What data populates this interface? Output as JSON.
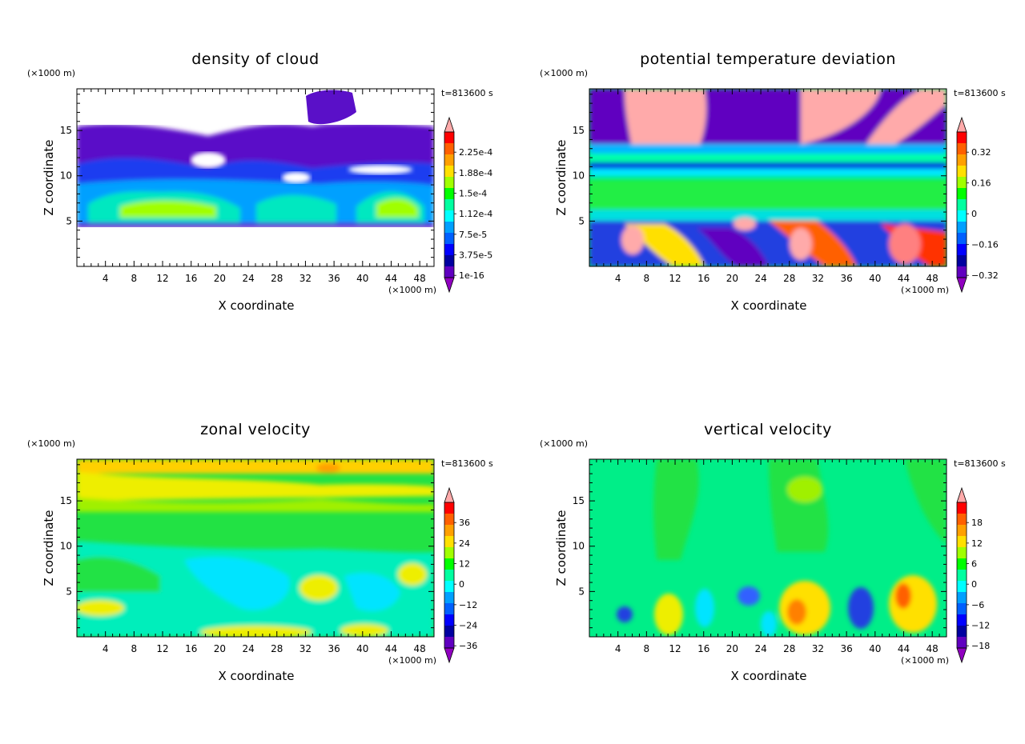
{
  "chart_data": [
    {
      "type": "heatmap",
      "title": "density of cloud",
      "xlabel": "X coordinate",
      "ylabel": "Z coordinate",
      "x_unit": "(×1000 m)",
      "y_unit": "(×1000 m)",
      "time_label": "t=813600 s",
      "xlim": [
        0,
        50
      ],
      "ylim": [
        0,
        19.6
      ],
      "x_ticks": [
        4,
        8,
        12,
        16,
        20,
        24,
        28,
        32,
        36,
        40,
        44,
        48
      ],
      "y_ticks": [
        5,
        10,
        15
      ],
      "colorbar": {
        "labels": [
          "2.25e-4",
          "1.88e-4",
          "1.5e-4",
          "1.12e-4",
          "7.5e-5",
          "3.75e-5",
          "1e-16"
        ],
        "colors": [
          "#ffaaaa",
          "#ff0000",
          "#ff6000",
          "#ffa000",
          "#ffe000",
          "#a0ff00",
          "#00ff00",
          "#00ffa0",
          "#00ffff",
          "#00a0ff",
          "#0060ff",
          "#0000ff",
          "#0000a0",
          "#6000c0",
          "#9000c0"
        ]
      }
    },
    {
      "type": "heatmap",
      "title": "potential temperature deviation",
      "xlabel": "X coordinate",
      "ylabel": "Z coordinate",
      "x_unit": "(×1000 m)",
      "y_unit": "(×1000 m)",
      "time_label": "t=813600 s",
      "xlim": [
        0,
        50
      ],
      "ylim": [
        0,
        19.6
      ],
      "x_ticks": [
        4,
        8,
        12,
        16,
        20,
        24,
        28,
        32,
        36,
        40,
        44,
        48
      ],
      "y_ticks": [
        5,
        10,
        15
      ],
      "colorbar": {
        "labels": [
          "0.32",
          "0.16",
          "0",
          "−0.16",
          "−0.32"
        ],
        "colors": [
          "#ffaaaa",
          "#ff0000",
          "#ff6000",
          "#ffa000",
          "#ffe000",
          "#a0ff00",
          "#00ff00",
          "#00ffa0",
          "#00ffff",
          "#00a0ff",
          "#0060ff",
          "#0000ff",
          "#0000a0",
          "#6000c0",
          "#9000c0"
        ]
      }
    },
    {
      "type": "heatmap",
      "title": "zonal velocity",
      "xlabel": "X coordinate",
      "ylabel": "Z coordinate",
      "x_unit": "(×1000 m)",
      "y_unit": "(×1000 m)",
      "time_label": "t=813600 s",
      "xlim": [
        0,
        50
      ],
      "ylim": [
        0,
        19.6
      ],
      "x_ticks": [
        4,
        8,
        12,
        16,
        20,
        24,
        28,
        32,
        36,
        40,
        44,
        48
      ],
      "y_ticks": [
        5,
        10,
        15
      ],
      "colorbar": {
        "labels": [
          "36",
          "24",
          "12",
          "0",
          "−12",
          "−24",
          "−36"
        ],
        "colors": [
          "#ffaaaa",
          "#ff0000",
          "#ff6000",
          "#ffa000",
          "#ffe000",
          "#a0ff00",
          "#00ff00",
          "#00ffa0",
          "#00ffff",
          "#00a0ff",
          "#0060ff",
          "#0000ff",
          "#0000a0",
          "#6000c0",
          "#9000c0"
        ]
      }
    },
    {
      "type": "heatmap",
      "title": "vertical velocity",
      "xlabel": "X coordinate",
      "ylabel": "Z coordinate",
      "x_unit": "(×1000 m)",
      "y_unit": "(×1000 m)",
      "time_label": "t=813600 s",
      "xlim": [
        0,
        50
      ],
      "ylim": [
        0,
        19.6
      ],
      "x_ticks": [
        4,
        8,
        12,
        16,
        20,
        24,
        28,
        32,
        36,
        40,
        44,
        48
      ],
      "y_ticks": [
        5,
        10,
        15
      ],
      "colorbar": {
        "labels": [
          "18",
          "12",
          "6",
          "0",
          "−6",
          "−12",
          "−18"
        ],
        "colors": [
          "#ffaaaa",
          "#ff0000",
          "#ff6000",
          "#ffa000",
          "#ffe000",
          "#a0ff00",
          "#00ff00",
          "#00ffa0",
          "#00ffff",
          "#00a0ff",
          "#0060ff",
          "#0000ff",
          "#0000a0",
          "#6000c0",
          "#9000c0"
        ]
      }
    }
  ]
}
